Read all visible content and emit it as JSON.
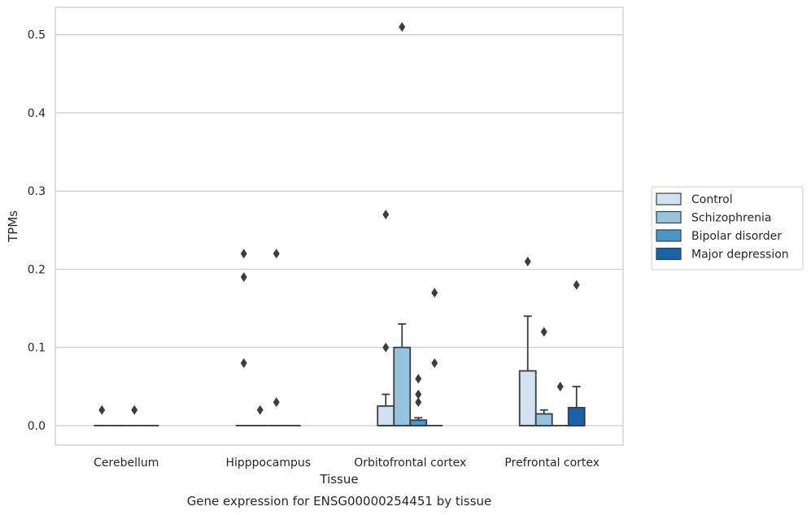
{
  "caption": "Gene expression for ENSG00000254451 by tissue",
  "chart_data": {
    "type": "box",
    "xlabel": "Tissue",
    "ylabel": "TPMs",
    "ylim": [
      -0.025,
      0.535
    ],
    "yticks": [
      0.0,
      0.1,
      0.2,
      0.3,
      0.4,
      0.5
    ],
    "ytick_labels": [
      "0.0",
      "0.1",
      "0.2",
      "0.3",
      "0.4",
      "0.5"
    ],
    "grid": "horizontal",
    "legend_position": "right",
    "categories": [
      "Cerebellum",
      "Hipppocampus",
      "Orbitofrontal cortex",
      "Prefrontal cortex"
    ],
    "series": [
      {
        "name": "Control",
        "color": "#d0e1f2",
        "boxes": [
          {
            "q1": 0,
            "median": 0,
            "q3": 0,
            "whisker_low": 0,
            "whisker_high": 0,
            "outliers": [
              0.02
            ]
          },
          {
            "q1": 0,
            "median": 0,
            "q3": 0,
            "whisker_low": 0,
            "whisker_high": 0,
            "outliers": [
              0.22,
              0.19,
              0.08
            ]
          },
          {
            "q1": 0,
            "median": 0,
            "q3": 0.025,
            "whisker_low": 0,
            "whisker_high": 0.04,
            "outliers": [
              0.27,
              0.1
            ]
          },
          {
            "q1": 0,
            "median": 0,
            "q3": 0.07,
            "whisker_low": 0,
            "whisker_high": 0.14,
            "outliers": [
              0.21
            ]
          }
        ]
      },
      {
        "name": "Schizophrenia",
        "color": "#94c4df",
        "boxes": [
          {
            "q1": 0,
            "median": 0,
            "q3": 0,
            "whisker_low": 0,
            "whisker_high": 0,
            "outliers": []
          },
          {
            "q1": 0,
            "median": 0,
            "q3": 0,
            "whisker_low": 0,
            "whisker_high": 0,
            "outliers": [
              0.02
            ]
          },
          {
            "q1": 0,
            "median": 0,
            "q3": 0.1,
            "whisker_low": 0,
            "whisker_high": 0.13,
            "outliers": [
              0.51
            ]
          },
          {
            "q1": 0,
            "median": 0,
            "q3": 0.015,
            "whisker_low": 0,
            "whisker_high": 0.02,
            "outliers": [
              0.12
            ]
          }
        ]
      },
      {
        "name": "Bipolar disorder",
        "color": "#4a98c9",
        "boxes": [
          {
            "q1": 0,
            "median": 0,
            "q3": 0,
            "whisker_low": 0,
            "whisker_high": 0,
            "outliers": [
              0.02
            ]
          },
          {
            "q1": 0,
            "median": 0,
            "q3": 0,
            "whisker_low": 0,
            "whisker_high": 0,
            "outliers": [
              0.22,
              0.03
            ]
          },
          {
            "q1": 0,
            "median": 0,
            "q3": 0.007,
            "whisker_low": 0,
            "whisker_high": 0.01,
            "outliers": [
              0.06,
              0.04,
              0.03
            ]
          },
          {
            "q1": 0,
            "median": 0,
            "q3": 0,
            "whisker_low": 0,
            "whisker_high": 0,
            "outliers": [
              0.05
            ]
          }
        ]
      },
      {
        "name": "Major depression",
        "color": "#1764ab",
        "boxes": [
          {
            "q1": 0,
            "median": 0,
            "q3": 0,
            "whisker_low": 0,
            "whisker_high": 0,
            "outliers": []
          },
          {
            "q1": 0,
            "median": 0,
            "q3": 0,
            "whisker_low": 0,
            "whisker_high": 0,
            "outliers": []
          },
          {
            "q1": 0,
            "median": 0,
            "q3": 0,
            "whisker_low": 0,
            "whisker_high": 0,
            "outliers": [
              0.17,
              0.08
            ]
          },
          {
            "q1": 0,
            "median": 0,
            "q3": 0.023,
            "whisker_low": 0,
            "whisker_high": 0.05,
            "outliers": [
              0.18
            ]
          }
        ]
      }
    ]
  }
}
